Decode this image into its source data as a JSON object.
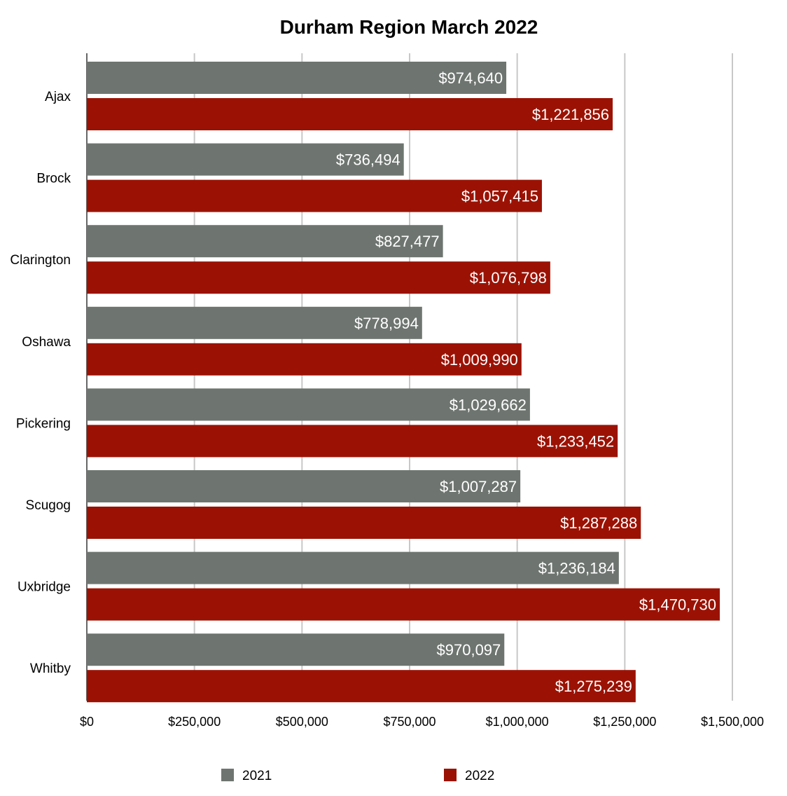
{
  "chart_data": {
    "type": "bar",
    "orientation": "horizontal",
    "title": "Durham Region March 2022",
    "xlabel": "",
    "ylabel": "",
    "categories": [
      "Ajax",
      "Brock",
      "Clarington",
      "Oshawa",
      "Pickering",
      "Scugog",
      "Uxbridge",
      "Whitby"
    ],
    "series": [
      {
        "name": "2021",
        "color": "#6e7570",
        "values": [
          974640,
          736494,
          827477,
          778994,
          1029662,
          1007287,
          1236184,
          970097
        ],
        "labels": [
          "$974,640",
          "$736,494",
          "$827,477",
          "$778,994",
          "$1,029,662",
          "$1,007,287",
          "$1,236,184",
          "$970,097"
        ]
      },
      {
        "name": "2022",
        "color": "#9b1204",
        "values": [
          1221856,
          1057415,
          1076798,
          1009990,
          1233452,
          1287288,
          1470730,
          1275239
        ],
        "labels": [
          "$1,221,856",
          "$1,057,415",
          "$1,076,798",
          "$1,009,990",
          "$1,233,452",
          "$1,287,288",
          "$1,470,730",
          "$1,275,239"
        ]
      }
    ],
    "xlim": [
      0,
      1500000
    ],
    "x_ticks": [
      0,
      250000,
      500000,
      750000,
      1000000,
      1250000,
      1500000
    ],
    "x_tick_labels": [
      "$0",
      "$250,000",
      "$500,000",
      "$750,000",
      "$1,000,000",
      "$1,250,000",
      "$1,500,000"
    ],
    "grid": true,
    "legend_position": "bottom"
  }
}
